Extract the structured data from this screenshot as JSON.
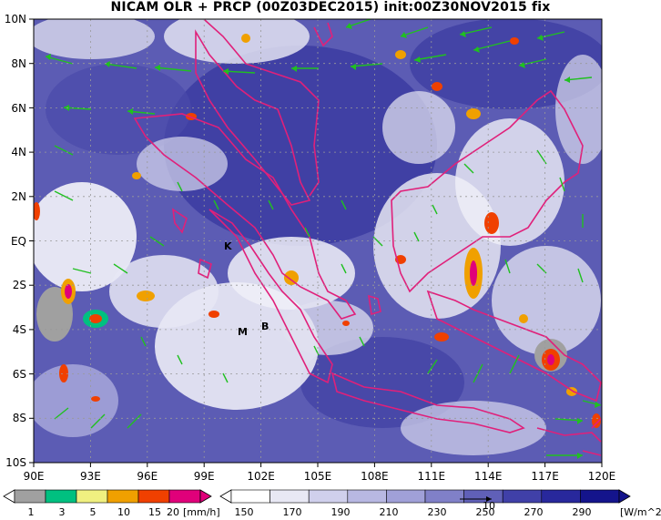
{
  "title": "NICAM OLR + PRCP (00Z03DEC2015) init:00Z30NOV2015 fix",
  "map": {
    "lon_labels": [
      "90E",
      "93E",
      "96E",
      "99E",
      "102E",
      "105E",
      "108E",
      "111E",
      "114E",
      "117E",
      "120E"
    ],
    "lat_labels": [
      "10N",
      "8N",
      "6N",
      "4N",
      "2N",
      "EQ",
      "2S",
      "4S",
      "6S",
      "8S",
      "10S"
    ],
    "markers": {
      "k": "K",
      "m": "M",
      "b": "B"
    }
  },
  "legend": {
    "precip": {
      "ticks": [
        "1",
        "3",
        "5",
        "10",
        "15",
        "20"
      ],
      "unit": "[mm/h]",
      "colors": [
        "#a0a0a0",
        "#00c080",
        "#f0f080",
        "#f0a000",
        "#f04000",
        "#e0007a"
      ]
    },
    "olr": {
      "ticks": [
        "150",
        "170",
        "190",
        "210",
        "230",
        "250",
        "270",
        "290"
      ],
      "unit": "[W/m^2]",
      "vector_ref": "10",
      "colors": [
        "#ffffff",
        "#e8e8f4",
        "#d0d0ec",
        "#b8b8e2",
        "#a0a0d8",
        "#8080c8",
        "#6060b8",
        "#4040a8",
        "#28289c",
        "#14148c"
      ]
    }
  }
}
